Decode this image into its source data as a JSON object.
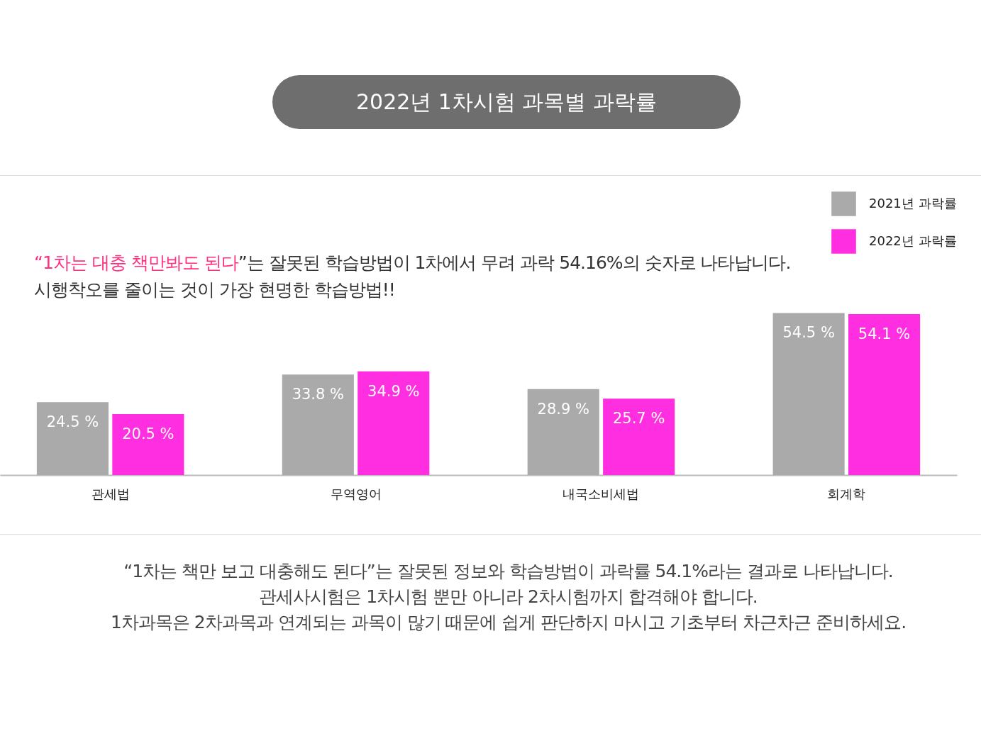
{
  "chart_data": {
    "type": "bar",
    "title": "2022년 1차시험 과목별 과락률",
    "subtitle": "“1차는 대충 책만봐도 된다”는 잘못된 학습방법이 1차에서 무려 과락 54.16%의 숫자로 나타납니다.\n시행착오를 줄이는 것이 가장 현명한 학습방법!!",
    "categories": [
      "관세법",
      "무역영어",
      "내국소비세법",
      "회계학"
    ],
    "series": [
      {
        "name": "2021년 과락률",
        "color": "#aaaaaa",
        "values": [
          24.5,
          33.8,
          28.9,
          54.5
        ],
        "value_labels": [
          "24.5 %",
          "33.8 %",
          "28.9 %",
          "54.5 %"
        ]
      },
      {
        "name": "2022년 과락률",
        "color": "#ff2ee0",
        "values": [
          20.5,
          34.9,
          25.7,
          54.1
        ],
        "value_labels": [
          "20.5 %",
          "34.9 %",
          "25.7 %",
          "54.1 %"
        ]
      }
    ],
    "legend": "top right",
    "grid": false,
    "annotations": [
      "“1차는 책만 보고 대충해도 된다”는 잘못된 정보와  학습방법이 과락률 54.1%라는 결과로 나타납니다.",
      "관세사시험은 1차시험 뿐만 아니라 2차시험까지 합격해야 합니다.",
      "1차과목은 2차과목과 연계되는 과목이 많기 때문에 쉽게 판단하지 마시고 기초부터 차근차근 준비하세요."
    ]
  }
}
